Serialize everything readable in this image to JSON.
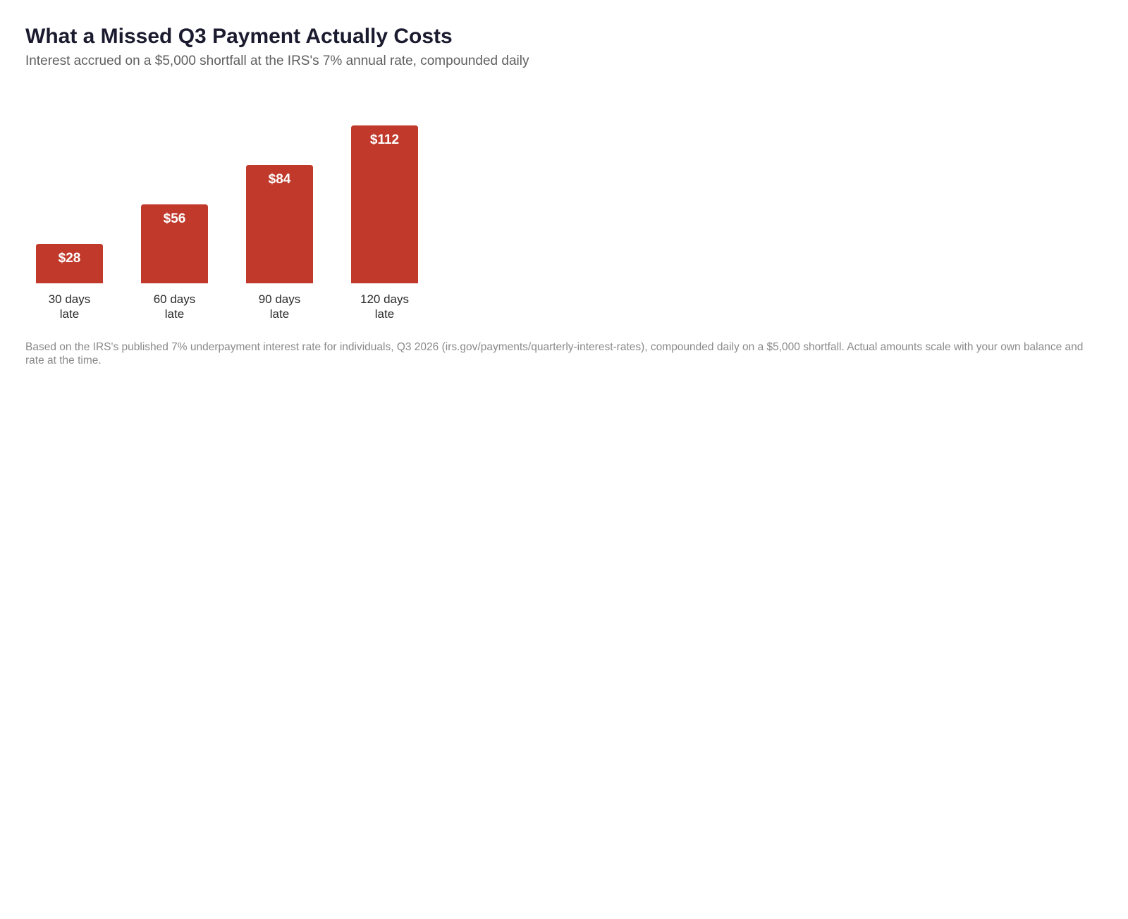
{
  "title": "What a Missed Q3 Payment Actually Costs",
  "subtitle": "Interest accrued on a $5,000 shortfall at the IRS's 7% annual rate, compounded daily",
  "footnote": "Based on the IRS's published 7% underpayment interest rate for individuals, Q3 2026 (irs.gov/payments/quarterly-interest-rates), compounded daily on a $5,000 shortfall. Actual amounts scale with your own balance and rate at the time.",
  "colors": {
    "bar": "#c0392b"
  },
  "chart_data": {
    "type": "bar",
    "title": "What a Missed Q3 Payment Actually Costs",
    "subtitle": "Interest accrued on a $5,000 shortfall at the IRS's 7% annual rate, compounded daily",
    "categories": [
      [
        "30 days",
        "late"
      ],
      [
        "60 days",
        "late"
      ],
      [
        "90 days",
        "late"
      ],
      [
        "120 days",
        "late"
      ]
    ],
    "values": [
      28,
      56,
      84,
      112
    ],
    "data_labels": [
      "$28",
      "$56",
      "$84",
      "$112"
    ],
    "xlabel": "",
    "ylabel": "",
    "ylim": [
      0,
      112
    ],
    "grid": false,
    "legend": "none"
  }
}
